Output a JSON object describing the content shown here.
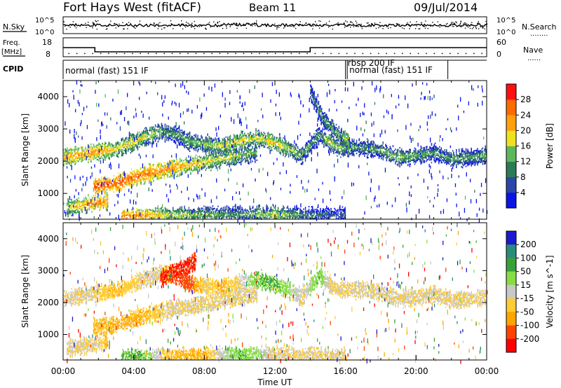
{
  "header": {
    "station": "Fort Hays West (fitACF)",
    "beam": "Beam 11",
    "date": "09/Jul/2014"
  },
  "noise_panel": {
    "left_label": "N.Sky",
    "left_ticks": [
      "10^5",
      "10^0"
    ],
    "right_ticks": [
      "10^5",
      "10^0"
    ],
    "right_label": "N.Search",
    "right_legend": "........"
  },
  "freq_panel": {
    "left_label_1": "Freq.",
    "left_label_2": "[MHz]",
    "left_ticks": [
      "18",
      "8"
    ],
    "right_ticks": [
      "60",
      "0"
    ],
    "right_label": "Nave",
    "right_legend": "......"
  },
  "cpid": {
    "label": "CPID",
    "modes": [
      {
        "text": "normal (fast) 151 IF",
        "start_h": 0,
        "end_h": 16
      },
      {
        "text": "rbsp 200 IF",
        "start_h": 16,
        "end_h": 16.1
      },
      {
        "text": "normal (fast) 151 IF",
        "start_h": 16.1,
        "end_h": 21.8
      }
    ]
  },
  "chart_data": [
    {
      "type": "heatmap",
      "title": "Power",
      "xlabel": "Time UT",
      "ylabel": "Slant Range [km]",
      "x_ticks": [
        "00:00",
        "04:00",
        "08:00",
        "12:00",
        "16:00",
        "20:00",
        "00:00"
      ],
      "xlim_hours": [
        0,
        24
      ],
      "y_ticks": [
        1000,
        2000,
        3000,
        4000
      ],
      "ylim": [
        200,
        4500
      ],
      "colorbar": {
        "label": "Power [dB]",
        "ticks": [
          "4",
          "8",
          "12",
          "16",
          "20",
          "24",
          "28"
        ],
        "colors": [
          "#0a14e6",
          "#2a47a8",
          "#2f7a56",
          "#5cb85c",
          "#f0e020",
          "#ffa010",
          "#ff6a00",
          "#ff1010"
        ]
      },
      "echo_bands": [
        {
          "name": "ionospheric-scatter",
          "points": [
            [
              0,
              2100
            ],
            [
              1.5,
              2250
            ],
            [
              3,
              2350
            ],
            [
              4.5,
              2700
            ],
            [
              5.5,
              2900
            ],
            [
              6.5,
              2800
            ],
            [
              7,
              2600
            ],
            [
              8,
              2500
            ],
            [
              9,
              2450
            ],
            [
              10,
              2600
            ],
            [
              11,
              2700
            ],
            [
              12,
              2550
            ],
            [
              13,
              2300
            ],
            [
              13.5,
              2150
            ],
            [
              14.5,
              2800
            ],
            [
              15,
              2600
            ],
            [
              15.5,
              2400
            ],
            [
              17,
              2400
            ],
            [
              18,
              2300
            ],
            [
              19,
              2100
            ],
            [
              20,
              2150
            ],
            [
              21,
              2250
            ],
            [
              22,
              2050
            ],
            [
              23,
              2100
            ],
            [
              24,
              2150
            ]
          ],
          "intensity": [
            22,
            24,
            20,
            18,
            14,
            12,
            14,
            16,
            18,
            20,
            18,
            20,
            16,
            14,
            12,
            18,
            16,
            12,
            14,
            16,
            14,
            12,
            14,
            12,
            14
          ]
        },
        {
          "name": "half-hop",
          "points": [
            [
              1.7,
              1200
            ],
            [
              3,
              1300
            ],
            [
              4.5,
              1550
            ],
            [
              6,
              1750
            ],
            [
              7,
              1850
            ],
            [
              8,
              1950
            ],
            [
              9,
              2050
            ],
            [
              10,
              2150
            ],
            [
              11,
              2250
            ]
          ],
          "intensity": [
            28,
            28,
            26,
            24,
            22,
            20,
            18,
            16,
            14
          ]
        },
        {
          "name": "near-range",
          "points": [
            [
              3.3,
              250
            ],
            [
              4.5,
              280
            ],
            [
              6,
              300
            ],
            [
              8,
              320
            ],
            [
              10,
              330
            ],
            [
              12,
              320
            ],
            [
              14,
              310
            ],
            [
              16,
              300
            ]
          ],
          "intensity": [
            26,
            24,
            18,
            14,
            12,
            18,
            10,
            8
          ]
        },
        {
          "name": "early-e-region",
          "points": [
            [
              0.2,
              550
            ],
            [
              1,
              600
            ],
            [
              2,
              700
            ],
            [
              2.5,
              750
            ]
          ],
          "intensity": [
            18,
            22,
            26,
            24
          ]
        },
        {
          "name": "late-night",
          "points": [
            [
              14,
              4100
            ],
            [
              14.7,
              3300
            ],
            [
              15.6,
              2800
            ],
            [
              16.2,
              2600
            ]
          ],
          "intensity": [
            10,
            12,
            14,
            18
          ]
        }
      ],
      "scatter_seed": 1407
    },
    {
      "type": "heatmap",
      "title": "Velocity",
      "xlabel": "Time UT",
      "ylabel": "Slant Range [km]",
      "x_ticks": [
        "00:00",
        "04:00",
        "08:00",
        "12:00",
        "16:00",
        "20:00",
        "00:00"
      ],
      "xlim_hours": [
        0,
        24
      ],
      "y_ticks": [
        1000,
        2000,
        3000,
        4000
      ],
      "ylim": [
        200,
        4500
      ],
      "colorbar": {
        "label": "Velocity [m s^-1]",
        "ticks": [
          "200",
          "100",
          "50",
          "15",
          "-15",
          "-50",
          "-100",
          "-200"
        ],
        "colors": [
          "#1a1ad0",
          "#2a8c7a",
          "#3aa03a",
          "#88dd44",
          "#c8c8c8",
          "#ffcc33",
          "#ffa500",
          "#ff4400",
          "#ff0000"
        ]
      },
      "echo_bands": [
        {
          "name": "ionospheric-scatter",
          "points": [
            [
              0,
              2100
            ],
            [
              1.5,
              2250
            ],
            [
              3,
              2350
            ],
            [
              4.5,
              2700
            ],
            [
              5.5,
              2900
            ],
            [
              6.5,
              2800
            ],
            [
              7,
              2600
            ],
            [
              8,
              2500
            ],
            [
              9,
              2450
            ],
            [
              10,
              2600
            ],
            [
              11,
              2700
            ],
            [
              12,
              2550
            ],
            [
              13,
              2300
            ],
            [
              13.5,
              2150
            ],
            [
              14.5,
              2800
            ],
            [
              15,
              2600
            ],
            [
              15.5,
              2400
            ],
            [
              17,
              2400
            ],
            [
              18,
              2300
            ],
            [
              19,
              2100
            ],
            [
              20,
              2150
            ],
            [
              21,
              2250
            ],
            [
              22,
              2050
            ],
            [
              23,
              2100
            ],
            [
              24,
              2150
            ]
          ],
          "velocity": [
            -15,
            -15,
            -50,
            -15,
            -15,
            -150,
            -150,
            -15,
            -50,
            -15,
            50,
            50,
            15,
            -15,
            50,
            -15,
            -15,
            -15,
            -15,
            -15,
            -15,
            -15,
            -15,
            -15,
            -15
          ]
        },
        {
          "name": "half-hop",
          "points": [
            [
              1.7,
              1200
            ],
            [
              3,
              1300
            ],
            [
              4.5,
              1550
            ],
            [
              6,
              1750
            ],
            [
              7,
              1850
            ],
            [
              8,
              1950
            ],
            [
              9,
              2050
            ],
            [
              10,
              2150
            ],
            [
              11,
              2250
            ]
          ],
          "velocity": [
            -50,
            -50,
            -50,
            -15,
            -15,
            -15,
            -15,
            -15,
            -15
          ]
        },
        {
          "name": "near-range",
          "points": [
            [
              3.3,
              250
            ],
            [
              4.5,
              280
            ],
            [
              6,
              300
            ],
            [
              8,
              320
            ],
            [
              10,
              330
            ],
            [
              12,
              320
            ],
            [
              14,
              310
            ],
            [
              16,
              300
            ]
          ],
          "velocity": [
            50,
            50,
            -50,
            -50,
            50,
            -15,
            -15,
            -15
          ]
        },
        {
          "name": "red-patch",
          "points": [
            [
              5.5,
              2700
            ],
            [
              6,
              2900
            ],
            [
              7,
              3100
            ],
            [
              7.5,
              3300
            ]
          ],
          "velocity": [
            -200,
            -200,
            -200,
            -200
          ]
        },
        {
          "name": "early-e-region",
          "points": [
            [
              0.2,
              550
            ],
            [
              1,
              600
            ],
            [
              2,
              700
            ],
            [
              2.5,
              750
            ]
          ],
          "velocity": [
            -15,
            -15,
            -15,
            -50
          ]
        }
      ],
      "scatter_seed": 2014
    }
  ],
  "frequency_trace": {
    "freq_mhz": [
      [
        0,
        13
      ],
      [
        1.8,
        13
      ],
      [
        1.8,
        10.5
      ],
      [
        14,
        10.5
      ],
      [
        14,
        13
      ],
      [
        24,
        13
      ]
    ],
    "nave": [
      [
        0,
        11
      ],
      [
        24,
        11
      ]
    ]
  }
}
